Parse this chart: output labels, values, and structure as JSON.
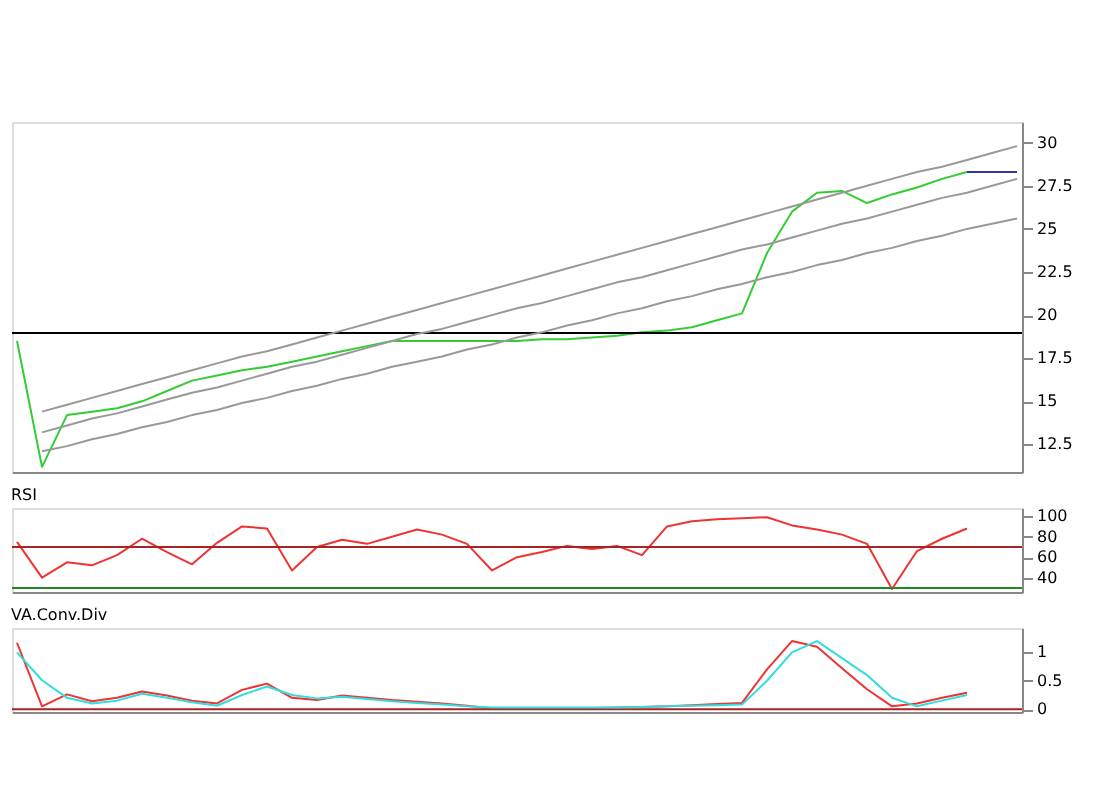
{
  "chart_data": [
    {
      "type": "line",
      "categories": [
        null,
        null,
        null,
        null,
        null,
        null,
        null,
        null,
        null,
        null,
        null,
        null,
        null,
        null,
        null,
        null,
        null,
        null,
        null,
        null,
        null,
        null,
        null,
        null,
        null,
        null,
        null,
        null,
        null,
        null,
        null,
        null,
        null,
        null,
        null,
        null,
        null,
        null,
        null,
        null,
        null
      ],
      "ylim": [
        10.9,
        31.2
      ],
      "yticks": [
        12.5,
        15,
        17.5,
        20,
        22.5,
        25,
        27.5,
        30
      ],
      "tick_labels": "y",
      "grid": false,
      "ref_lines": [
        {
          "axis": "y",
          "value": 18.958,
          "color": "#000000"
        }
      ],
      "series": [
        {
          "color": "#33cc33",
          "values": [
            18.5,
            11.2,
            14.2,
            14.4,
            14.6,
            15.0,
            15.6,
            16.2,
            16.5,
            16.8,
            17.0,
            17.3,
            17.6,
            17.9,
            18.2,
            18.5,
            18.5,
            18.5,
            18.5,
            18.5,
            18.5,
            18.6,
            18.6,
            18.7,
            18.8,
            19.0,
            19.1,
            19.3,
            19.7,
            20.1,
            23.6,
            26.0,
            27.1,
            27.2,
            26.5,
            27.0,
            27.4,
            27.9,
            28.3,
            null,
            null
          ]
        },
        {
          "color": "#999999",
          "values": [
            null,
            14.4,
            14.8,
            15.2,
            15.6,
            16.0,
            16.4,
            16.8,
            17.2,
            17.6,
            17.9,
            18.3,
            18.7,
            19.1,
            19.5,
            19.9,
            20.3,
            20.7,
            21.1,
            21.5,
            21.9,
            22.3,
            22.7,
            23.1,
            23.5,
            23.9,
            24.3,
            24.7,
            25.1,
            25.5,
            25.9,
            26.3,
            26.7,
            27.1,
            27.5,
            27.9,
            28.3,
            28.6,
            29.0,
            29.4,
            29.8
          ]
        },
        {
          "color": "#999999",
          "values": [
            null,
            13.2,
            13.6,
            14.0,
            14.3,
            14.7,
            15.1,
            15.5,
            15.8,
            16.2,
            16.6,
            17.0,
            17.3,
            17.7,
            18.1,
            18.5,
            18.9,
            19.2,
            19.6,
            20.0,
            20.4,
            20.7,
            21.1,
            21.5,
            21.9,
            22.2,
            22.6,
            23.0,
            23.4,
            23.8,
            24.1,
            24.5,
            24.9,
            25.3,
            25.6,
            26.0,
            26.4,
            26.8,
            27.1,
            27.5,
            27.9
          ]
        },
        {
          "color": "#999999",
          "values": [
            null,
            12.1,
            12.4,
            12.8,
            13.1,
            13.5,
            13.8,
            14.2,
            14.5,
            14.9,
            15.2,
            15.6,
            15.9,
            16.3,
            16.6,
            17.0,
            17.3,
            17.6,
            18.0,
            18.3,
            18.7,
            19.0,
            19.4,
            19.7,
            20.1,
            20.4,
            20.8,
            21.1,
            21.5,
            21.8,
            22.2,
            22.5,
            22.9,
            23.2,
            23.6,
            23.9,
            24.3,
            24.6,
            25.0,
            25.3,
            25.6
          ]
        },
        {
          "color": "#3333aa",
          "values": [
            null,
            null,
            null,
            null,
            null,
            null,
            null,
            null,
            null,
            null,
            null,
            null,
            null,
            null,
            null,
            null,
            null,
            null,
            null,
            null,
            null,
            null,
            null,
            null,
            null,
            null,
            null,
            null,
            null,
            null,
            null,
            null,
            null,
            null,
            null,
            null,
            null,
            null,
            28.3,
            28.3,
            28.3
          ]
        }
      ]
    },
    {
      "type": "line",
      "title": "RSI",
      "categories": [
        null,
        null,
        null,
        null,
        null,
        null,
        null,
        null,
        null,
        null,
        null,
        null,
        null,
        null,
        null,
        null,
        null,
        null,
        null,
        null,
        null,
        null,
        null,
        null,
        null,
        null,
        null,
        null,
        null,
        null,
        null,
        null,
        null,
        null,
        null,
        null,
        null,
        null,
        null,
        null,
        null
      ],
      "ylim": [
        26,
        108
      ],
      "yticks": [
        40,
        60,
        80,
        100
      ],
      "tick_labels": "y",
      "grid": false,
      "ref_lines": [
        {
          "axis": "y",
          "value": 70,
          "color": "#aa2222"
        },
        {
          "axis": "y",
          "value": 30,
          "color": "#228822"
        }
      ],
      "series": [
        {
          "color": "#ee3333",
          "values": [
            75,
            40,
            55,
            52,
            62,
            78,
            65,
            53,
            74,
            90,
            88,
            47,
            70,
            77,
            73,
            80,
            87,
            82,
            73,
            47,
            60,
            65,
            71,
            68,
            71,
            62,
            90,
            95,
            97,
            98,
            99,
            91,
            87,
            82,
            73,
            29,
            66,
            78,
            88,
            null,
            null
          ]
        }
      ]
    },
    {
      "type": "line",
      "title": "VA.Conv.Div",
      "categories": [
        null,
        null,
        null,
        null,
        null,
        null,
        null,
        null,
        null,
        null,
        null,
        null,
        null,
        null,
        null,
        null,
        null,
        null,
        null,
        null,
        null,
        null,
        null,
        null,
        null,
        null,
        null,
        null,
        null,
        null,
        null,
        null,
        null,
        null,
        null,
        null,
        null,
        null,
        null,
        null,
        null
      ],
      "ylim": [
        -0.05,
        1.43
      ],
      "yticks": [
        0,
        0.5,
        1
      ],
      "tick_labels": "y",
      "grid": false,
      "ref_lines": [
        {
          "axis": "y",
          "value": 0,
          "color": "#aa2222"
        }
      ],
      "series": [
        {
          "color": "#ee3333",
          "values": [
            1.17,
            0.05,
            0.26,
            0.14,
            0.2,
            0.31,
            0.24,
            0.15,
            0.1,
            0.34,
            0.45,
            0.2,
            0.16,
            0.24,
            0.2,
            0.16,
            0.13,
            0.1,
            0.06,
            0.01,
            0.01,
            0.02,
            0.02,
            0.02,
            0.03,
            0.04,
            0.05,
            0.07,
            0.09,
            0.11,
            0.7,
            1.2,
            1.1,
            0.72,
            0.35,
            0.05,
            0.1,
            0.2,
            0.29,
            null,
            null
          ]
        },
        {
          "color": "#33dddd",
          "values": [
            1.0,
            0.51,
            0.2,
            0.1,
            0.15,
            0.27,
            0.2,
            0.12,
            0.06,
            0.25,
            0.4,
            0.25,
            0.19,
            0.22,
            0.18,
            0.14,
            0.11,
            0.08,
            0.05,
            0.03,
            0.03,
            0.03,
            0.03,
            0.03,
            0.03,
            0.04,
            0.05,
            0.06,
            0.07,
            0.08,
            0.5,
            1.0,
            1.2,
            0.9,
            0.6,
            0.2,
            0.05,
            0.15,
            0.25,
            null,
            null
          ]
        }
      ]
    }
  ]
}
